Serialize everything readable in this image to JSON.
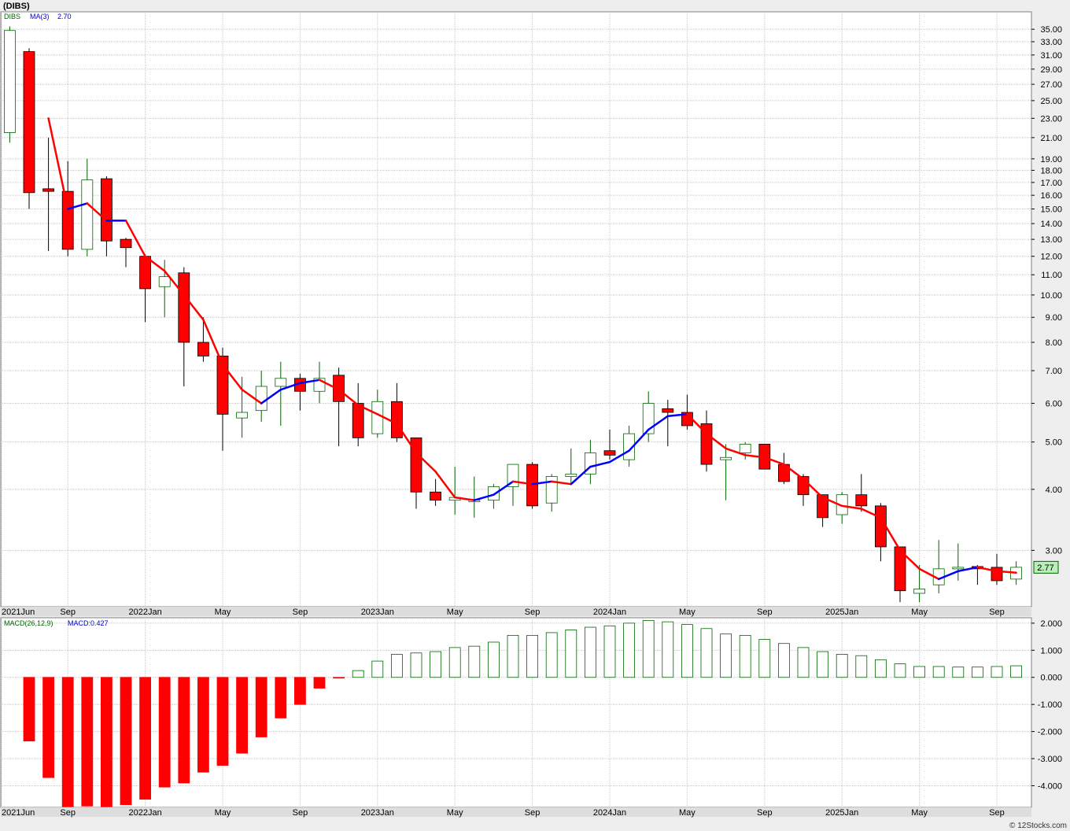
{
  "title": "(DIBS)",
  "legend": {
    "symbol": "DIBS",
    "ma_label": "MA(3)",
    "ma_value": "2.70"
  },
  "last_price_label": "2.77",
  "macd_legend": {
    "label": "MACD(26,12,9)",
    "value": "MACD:0.427"
  },
  "watermark": "© 12Stocks.com",
  "colors": {
    "up": "#ffffff",
    "up_stroke": "#006400",
    "down": "#ff0000",
    "ma_up": "#0000ff",
    "ma_down": "#ff0000",
    "grid": "#c8c8c8",
    "price_tag": "#b8f0b8"
  },
  "chart_data": [
    {
      "type": "candlestick",
      "title": "(DIBS)",
      "scale": "log",
      "ylim": [
        2.3,
        38.0
      ],
      "y_ticks": [
        "35.00",
        "33.00",
        "31.00",
        "29.00",
        "27.00",
        "25.00",
        "23.00",
        "21.00",
        "19.00",
        "18.00",
        "17.00",
        "16.00",
        "15.00",
        "14.00",
        "13.00",
        "12.00",
        "11.00",
        "10.00",
        "9.00",
        "8.00",
        "7.00",
        "6.00",
        "5.00",
        "4.00",
        "3.00"
      ],
      "x_labels": [
        "2021Jun",
        "Sep",
        "2022Jan",
        "May",
        "Sep",
        "2023Jan",
        "May",
        "Sep",
        "2024Jan",
        "May",
        "Sep",
        "2025Jan",
        "May",
        "Sep"
      ],
      "x_label_index": [
        0,
        3,
        7,
        11,
        15,
        19,
        23,
        27,
        31,
        35,
        39,
        43,
        47,
        51
      ],
      "candles": [
        {
          "o": 21.5,
          "h": 35.5,
          "l": 20.5,
          "c": 34.8
        },
        {
          "o": 31.5,
          "h": 32.0,
          "l": 15.0,
          "c": 16.2
        },
        {
          "o": 16.5,
          "h": 21.0,
          "l": 12.3,
          "c": 16.3
        },
        {
          "o": 16.3,
          "h": 18.8,
          "l": 12.0,
          "c": 12.4
        },
        {
          "o": 12.4,
          "h": 19.0,
          "l": 12.0,
          "c": 17.2
        },
        {
          "o": 17.3,
          "h": 17.5,
          "l": 12.0,
          "c": 12.9
        },
        {
          "o": 13.0,
          "h": 13.1,
          "l": 11.4,
          "c": 12.5
        },
        {
          "o": 12.0,
          "h": 12.1,
          "l": 8.8,
          "c": 10.3
        },
        {
          "o": 10.4,
          "h": 11.8,
          "l": 9.0,
          "c": 10.9
        },
        {
          "o": 11.1,
          "h": 11.4,
          "l": 6.5,
          "c": 8.0
        },
        {
          "o": 8.0,
          "h": 9.0,
          "l": 7.3,
          "c": 7.5
        },
        {
          "o": 7.5,
          "h": 7.8,
          "l": 4.8,
          "c": 5.7
        },
        {
          "o": 5.6,
          "h": 6.8,
          "l": 5.1,
          "c": 5.75
        },
        {
          "o": 5.8,
          "h": 7.0,
          "l": 5.5,
          "c": 6.5
        },
        {
          "o": 6.5,
          "h": 7.3,
          "l": 5.4,
          "c": 6.75
        },
        {
          "o": 6.75,
          "h": 6.9,
          "l": 5.8,
          "c": 6.35
        },
        {
          "o": 6.35,
          "h": 7.3,
          "l": 6.0,
          "c": 6.75
        },
        {
          "o": 6.85,
          "h": 7.1,
          "l": 4.9,
          "c": 6.05
        },
        {
          "o": 6.0,
          "h": 6.6,
          "l": 4.9,
          "c": 5.1
        },
        {
          "o": 5.2,
          "h": 6.4,
          "l": 5.1,
          "c": 6.05
        },
        {
          "o": 6.05,
          "h": 6.6,
          "l": 5.0,
          "c": 5.1
        },
        {
          "o": 5.1,
          "h": 5.1,
          "l": 3.65,
          "c": 3.95
        },
        {
          "o": 3.95,
          "h": 4.2,
          "l": 3.7,
          "c": 3.8
        },
        {
          "o": 3.8,
          "h": 4.45,
          "l": 3.55,
          "c": 3.85
        },
        {
          "o": 3.8,
          "h": 4.25,
          "l": 3.5,
          "c": 3.8
        },
        {
          "o": 3.8,
          "h": 4.1,
          "l": 3.65,
          "c": 4.05
        },
        {
          "o": 4.05,
          "h": 4.5,
          "l": 3.7,
          "c": 4.5
        },
        {
          "o": 4.5,
          "h": 4.55,
          "l": 3.65,
          "c": 3.7
        },
        {
          "o": 3.75,
          "h": 4.3,
          "l": 3.6,
          "c": 4.25
        },
        {
          "o": 4.25,
          "h": 4.85,
          "l": 4.1,
          "c": 4.3
        },
        {
          "o": 4.3,
          "h": 5.05,
          "l": 4.1,
          "c": 4.75
        },
        {
          "o": 4.8,
          "h": 5.3,
          "l": 4.6,
          "c": 4.7
        },
        {
          "o": 4.6,
          "h": 5.4,
          "l": 4.45,
          "c": 5.2
        },
        {
          "o": 5.2,
          "h": 6.35,
          "l": 5.0,
          "c": 6.0
        },
        {
          "o": 5.85,
          "h": 6.1,
          "l": 4.9,
          "c": 5.75
        },
        {
          "o": 5.75,
          "h": 6.25,
          "l": 5.3,
          "c": 5.4
        },
        {
          "o": 5.45,
          "h": 5.8,
          "l": 4.35,
          "c": 4.5
        },
        {
          "o": 4.6,
          "h": 4.95,
          "l": 3.8,
          "c": 4.65
        },
        {
          "o": 4.75,
          "h": 5.0,
          "l": 4.6,
          "c": 4.95
        },
        {
          "o": 4.95,
          "h": 4.95,
          "l": 4.4,
          "c": 4.4
        },
        {
          "o": 4.5,
          "h": 4.75,
          "l": 4.1,
          "c": 4.15
        },
        {
          "o": 4.25,
          "h": 4.3,
          "l": 3.7,
          "c": 3.9
        },
        {
          "o": 3.9,
          "h": 3.9,
          "l": 3.35,
          "c": 3.5
        },
        {
          "o": 3.55,
          "h": 3.95,
          "l": 3.4,
          "c": 3.9
        },
        {
          "o": 3.9,
          "h": 4.3,
          "l": 3.6,
          "c": 3.7
        },
        {
          "o": 3.7,
          "h": 3.75,
          "l": 2.85,
          "c": 3.05
        },
        {
          "o": 3.05,
          "h": 3.05,
          "l": 2.35,
          "c": 2.48
        },
        {
          "o": 2.45,
          "h": 2.8,
          "l": 2.35,
          "c": 2.5
        },
        {
          "o": 2.55,
          "h": 3.15,
          "l": 2.45,
          "c": 2.75
        },
        {
          "o": 2.75,
          "h": 3.1,
          "l": 2.6,
          "c": 2.77
        },
        {
          "o": 2.78,
          "h": 2.8,
          "l": 2.55,
          "c": 2.75
        },
        {
          "o": 2.77,
          "h": 2.95,
          "l": 2.55,
          "c": 2.6
        },
        {
          "o": 2.62,
          "h": 2.85,
          "l": 2.55,
          "c": 2.77
        }
      ],
      "ma3": [
        null,
        null,
        23.0,
        15.0,
        15.4,
        14.2,
        14.2,
        12.0,
        11.2,
        10.0,
        8.9,
        7.2,
        6.4,
        6.0,
        6.4,
        6.6,
        6.7,
        6.4,
        5.95,
        5.7,
        5.45,
        4.75,
        4.35,
        3.85,
        3.8,
        3.9,
        4.15,
        4.1,
        4.15,
        4.1,
        4.45,
        4.55,
        4.8,
        5.3,
        5.65,
        5.7,
        5.2,
        4.85,
        4.7,
        4.65,
        4.5,
        4.2,
        3.85,
        3.7,
        3.65,
        3.5,
        3.0,
        2.75,
        2.62,
        2.72,
        2.77,
        2.72,
        2.7
      ]
    },
    {
      "type": "bar",
      "title": "MACD(26,12,9)",
      "ylim": [
        -4.8,
        2.2
      ],
      "y_ticks": [
        "2.000",
        "1.000",
        "0.000",
        "-1.000",
        "-2.000",
        "-3.000",
        "-4.000"
      ],
      "x_labels": [
        "2021Jun",
        "Sep",
        "2022Jan",
        "May",
        "Sep",
        "2023Jan",
        "May",
        "Sep",
        "2024Jan",
        "May",
        "Sep",
        "2025Jan",
        "May",
        "Sep"
      ],
      "values": [
        null,
        -2.35,
        -3.7,
        -4.9,
        -4.75,
        -4.95,
        -4.7,
        -4.5,
        -4.05,
        -3.9,
        -3.5,
        -3.25,
        -2.8,
        -2.2,
        -1.5,
        -1.0,
        -0.4,
        -0.02,
        0.25,
        0.6,
        0.85,
        0.9,
        0.95,
        1.1,
        1.15,
        1.3,
        1.55,
        1.55,
        1.65,
        1.75,
        1.85,
        1.9,
        2.0,
        2.1,
        2.05,
        1.95,
        1.8,
        1.6,
        1.55,
        1.4,
        1.25,
        1.1,
        0.95,
        0.85,
        0.8,
        0.65,
        0.5,
        0.4,
        0.4,
        0.38,
        0.38,
        0.4,
        0.427
      ]
    }
  ]
}
